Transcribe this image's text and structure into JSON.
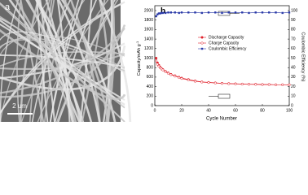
{
  "panel_a": {
    "label": "a",
    "scale_bar": "2 um"
  },
  "chart_data": {
    "type": "line",
    "panel_label": "b",
    "x_label": "Cycle Number",
    "y_label": "Capacity/mAh g",
    "y_label_sup": "-1",
    "y2_label": "Coulombic Efficiency (%)",
    "x": [
      1,
      2,
      3,
      4,
      5,
      6,
      8,
      10,
      12,
      15,
      18,
      20,
      25,
      30,
      35,
      40,
      45,
      50,
      55,
      60,
      65,
      70,
      75,
      80,
      85,
      90,
      95,
      100
    ],
    "series": [
      {
        "name": "Discharge Capacity",
        "color": "#e0202a",
        "marker": "filled-circle",
        "values": [
          1000,
          900,
          850,
          810,
          780,
          760,
          720,
          690,
          660,
          630,
          600,
          580,
          550,
          520,
          500,
          490,
          480,
          470,
          465,
          460,
          455,
          450,
          450,
          445,
          445,
          440,
          440,
          440
        ]
      },
      {
        "name": "Charge Capacity",
        "color": "#e0202a",
        "marker": "open-circle",
        "values": [
          940,
          870,
          830,
          795,
          770,
          750,
          710,
          680,
          650,
          620,
          590,
          570,
          540,
          512,
          495,
          485,
          475,
          466,
          460,
          456,
          452,
          448,
          446,
          442,
          442,
          438,
          438,
          437
        ]
      },
      {
        "name": "Coulombic Efficiency",
        "color": "#2a3aa8",
        "marker": "filled-square",
        "axis": "y2",
        "values": [
          94,
          96,
          97,
          97,
          97.5,
          97.5,
          97.5,
          98,
          98,
          98,
          97.5,
          98,
          98,
          98,
          97.5,
          98,
          98,
          97.5,
          98,
          98,
          98,
          97.5,
          98,
          98,
          98,
          98,
          97.5,
          98
        ]
      }
    ],
    "xlim": [
      0,
      100
    ],
    "xticks": [
      0,
      20,
      40,
      60,
      80,
      100
    ],
    "ylim": [
      0,
      2000
    ],
    "yticks": [
      0,
      200,
      400,
      600,
      800,
      1000,
      1200,
      1400,
      1600,
      1800,
      2000
    ],
    "y2lim": [
      0,
      100
    ],
    "y2ticks": [
      0,
      10,
      20,
      30,
      40,
      50,
      60,
      70,
      80,
      90,
      100
    ]
  }
}
